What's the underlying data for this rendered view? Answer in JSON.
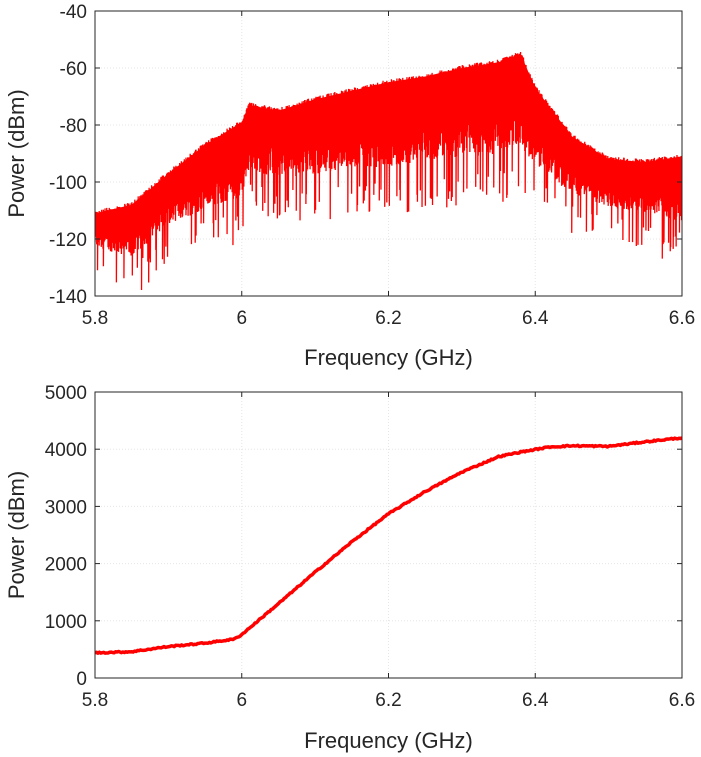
{
  "chart_data": [
    {
      "type": "line",
      "title": "",
      "xlabel": "Frequency (GHz)",
      "ylabel": "Power (dBm)",
      "xlim": [
        5.8,
        6.6
      ],
      "ylim": [
        -140,
        -40
      ],
      "xticks": [
        5.8,
        6.0,
        6.2,
        6.4,
        6.6
      ],
      "xtick_labels": [
        "5.8",
        "6",
        "6.2",
        "6.4",
        "6.6"
      ],
      "yticks": [
        -140,
        -120,
        -100,
        -80,
        -60,
        -40
      ],
      "ytick_labels": [
        "-140",
        "-120",
        "-100",
        "-80",
        "-60",
        "-40"
      ],
      "grid": true,
      "series_color": "#ff0000",
      "render": "dense-band",
      "envelope": {
        "x": [
          5.8,
          5.85,
          5.9,
          5.95,
          6.0,
          6.01,
          6.05,
          6.1,
          6.15,
          6.2,
          6.25,
          6.3,
          6.35,
          6.38,
          6.4,
          6.45,
          6.5,
          6.55,
          6.6
        ],
        "upper": [
          -110,
          -107,
          -96,
          -86,
          -78,
          -72,
          -74,
          -70,
          -67,
          -64,
          -62,
          -59,
          -57,
          -54,
          -66,
          -83,
          -91,
          -92,
          -90
        ],
        "lower": [
          -125,
          -130,
          -118,
          -114,
          -110,
          -100,
          -103,
          -102,
          -100,
          -100,
          -98,
          -97,
          -96,
          -94,
          -99,
          -108,
          -112,
          -114,
          -118
        ]
      }
    },
    {
      "type": "line",
      "title": "",
      "xlabel": "Frequency (GHz)",
      "ylabel": "Power (dBm)",
      "xlim": [
        5.8,
        6.6
      ],
      "ylim": [
        0,
        5000
      ],
      "xticks": [
        5.8,
        6.0,
        6.2,
        6.4,
        6.6
      ],
      "xtick_labels": [
        "5.8",
        "6",
        "6.2",
        "6.4",
        "6.6"
      ],
      "yticks": [
        0,
        1000,
        2000,
        3000,
        4000,
        5000
      ],
      "ytick_labels": [
        "0",
        "1000",
        "2000",
        "3000",
        "4000",
        "5000"
      ],
      "grid": true,
      "series_color": "#ff0000",
      "x": [
        5.8,
        5.85,
        5.9,
        5.95,
        5.99,
        6.0,
        6.05,
        6.1,
        6.15,
        6.2,
        6.25,
        6.3,
        6.35,
        6.38,
        6.42,
        6.45,
        6.5,
        6.55,
        6.6
      ],
      "y": [
        440,
        460,
        550,
        610,
        680,
        760,
        1300,
        1850,
        2380,
        2870,
        3260,
        3600,
        3870,
        3950,
        4040,
        4060,
        4050,
        4130,
        4200
      ]
    }
  ]
}
